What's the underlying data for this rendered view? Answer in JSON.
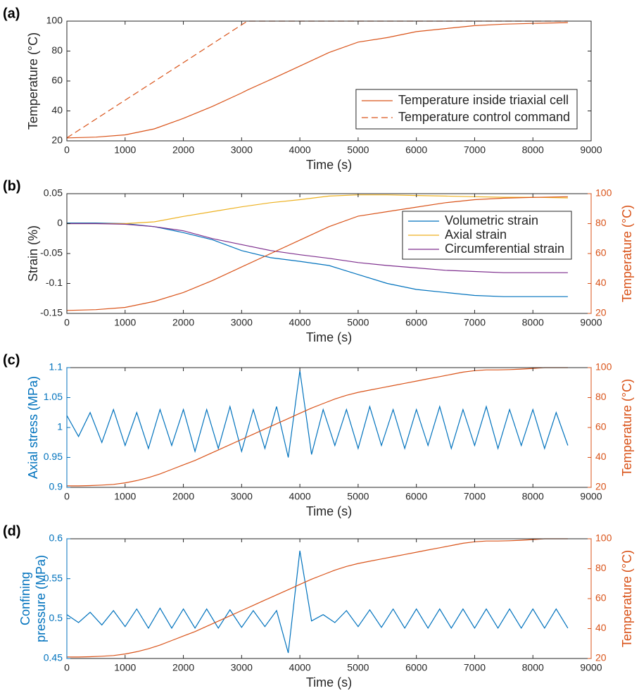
{
  "chart_data": [
    {
      "type": "line",
      "panel_label": "(a)",
      "xlabel": "Time (s)",
      "ylabel": [
        "Temperature (°C)"
      ],
      "x": [
        0,
        500,
        1000,
        1500,
        2000,
        2500,
        3000,
        3100,
        3500,
        4000,
        4500,
        5000,
        5500,
        6000,
        6500,
        7000,
        7500,
        8000,
        8600
      ],
      "xlim": [
        0,
        9000
      ],
      "xticks": [
        0,
        1000,
        2000,
        3000,
        4000,
        5000,
        6000,
        7000,
        8000,
        9000
      ],
      "ylim": [
        20,
        100
      ],
      "yticks": [
        20,
        40,
        60,
        80,
        100
      ],
      "ycolor": "#262626",
      "legend": "lower right",
      "series": [
        {
          "name": "Temperature inside triaxial cell",
          "color": "#d95319",
          "values": [
            22,
            22.5,
            24,
            28,
            35,
            43,
            52,
            54,
            61,
            70,
            79,
            86,
            89,
            93,
            95,
            97,
            98,
            98.5,
            99
          ]
        },
        {
          "name": "Temperature control command",
          "color": "#d95319",
          "dash": true,
          "values": [
            22,
            34.6,
            47.2,
            59.7,
            72.3,
            84.9,
            97.5,
            100,
            100,
            100,
            100,
            100,
            100,
            100,
            100,
            100,
            100,
            100,
            100
          ]
        }
      ]
    },
    {
      "type": "line",
      "panel_label": "(b)",
      "xlabel": "Time (s)",
      "ylabel": [
        "Strain (%)"
      ],
      "y2label": "Temperature (°C)",
      "x": [
        0,
        500,
        1000,
        1500,
        2000,
        2500,
        3000,
        3500,
        4000,
        4500,
        5000,
        5500,
        6000,
        6500,
        7000,
        7500,
        8000,
        8600
      ],
      "xlim": [
        0,
        9000
      ],
      "xticks": [
        0,
        1000,
        2000,
        3000,
        4000,
        5000,
        6000,
        7000,
        8000,
        9000
      ],
      "ylim": [
        -0.15,
        0.05
      ],
      "yticks": [
        -0.15,
        -0.1,
        -0.05,
        0,
        0.05
      ],
      "ycolor": "#262626",
      "y2lim": [
        20,
        100
      ],
      "y2ticks": [
        20,
        40,
        60,
        80,
        100
      ],
      "y2color": "#d95319",
      "legend": "upper right",
      "series": [
        {
          "name": "Volumetric strain",
          "color": "#0072bd",
          "values": [
            0.001,
            0.001,
            0,
            -0.005,
            -0.015,
            -0.027,
            -0.045,
            -0.057,
            -0.063,
            -0.07,
            -0.085,
            -0.1,
            -0.11,
            -0.115,
            -0.12,
            -0.122,
            -0.122,
            -0.122
          ]
        },
        {
          "name": "Axial strain",
          "color": "#edb120",
          "values": [
            0,
            0,
            0,
            0.003,
            0.012,
            0.02,
            0.028,
            0.035,
            0.04,
            0.046,
            0.048,
            0.048,
            0.047,
            0.046,
            0.045,
            0.044,
            0.044,
            0.043
          ]
        },
        {
          "name": "Circumferential strain",
          "color": "#7e2f8e",
          "values": [
            0,
            0,
            -0.001,
            -0.005,
            -0.012,
            -0.025,
            -0.035,
            -0.045,
            -0.052,
            -0.058,
            -0.065,
            -0.07,
            -0.074,
            -0.078,
            -0.08,
            -0.082,
            -0.082,
            -0.082
          ]
        },
        {
          "color": "#d95319",
          "axis": "y2",
          "values": [
            22,
            22.5,
            24,
            28,
            34,
            42,
            51,
            60,
            69,
            78,
            85,
            88,
            91,
            94,
            96,
            97,
            97.5,
            98
          ]
        }
      ]
    },
    {
      "type": "line",
      "panel_label": "(c)",
      "xlabel": "Time (s)",
      "ylabel": [
        "Axial stress (MPa)"
      ],
      "y2label": "Temperature (°C)",
      "x": [
        0,
        200,
        400,
        600,
        800,
        1000,
        1200,
        1400,
        1600,
        1800,
        2000,
        2200,
        2400,
        2600,
        2800,
        3000,
        3200,
        3400,
        3600,
        3800,
        4000,
        4200,
        4400,
        4600,
        4800,
        5000,
        5200,
        5400,
        5600,
        5800,
        6000,
        6200,
        6400,
        6600,
        6800,
        7000,
        7200,
        7400,
        7600,
        7800,
        8000,
        8200,
        8400,
        8600
      ],
      "xlim": [
        0,
        9000
      ],
      "xticks": [
        0,
        1000,
        2000,
        3000,
        4000,
        5000,
        6000,
        7000,
        8000,
        9000
      ],
      "ylim": [
        0.9,
        1.1
      ],
      "yticks": [
        0.9,
        0.95,
        1,
        1.05,
        1.1
      ],
      "ycolor": "#0072bd",
      "y2lim": [
        20,
        100
      ],
      "y2ticks": [
        20,
        40,
        60,
        80,
        100
      ],
      "y2color": "#d95319",
      "series": [
        {
          "color": "#0072bd",
          "values": [
            1.02,
            0.985,
            1.025,
            0.975,
            1.03,
            0.97,
            1.025,
            0.965,
            1.03,
            0.97,
            1.03,
            0.96,
            1.03,
            0.965,
            1.035,
            0.96,
            1.03,
            0.965,
            1.035,
            0.95,
            1.095,
            0.955,
            1.03,
            0.97,
            1.03,
            0.965,
            1.035,
            0.97,
            1.03,
            0.965,
            1.03,
            0.97,
            1.035,
            0.965,
            1.03,
            0.97,
            1.035,
            0.965,
            1.03,
            0.97,
            1.03,
            0.965,
            1.025,
            0.97
          ]
        },
        {
          "color": "#d95319",
          "axis": "y2",
          "values": [
            21,
            21,
            21.2,
            21.5,
            22,
            23,
            24.5,
            26.5,
            29,
            32,
            35,
            38,
            41.5,
            45,
            48.5,
            52,
            55.5,
            59,
            62.5,
            66,
            69.5,
            73,
            76,
            79,
            81.5,
            83.5,
            85,
            86.5,
            88,
            89.5,
            91,
            92.5,
            94,
            95.5,
            97,
            98,
            98.5,
            98.5,
            98.7,
            99,
            99.5,
            100,
            100,
            100
          ]
        }
      ]
    },
    {
      "type": "line",
      "panel_label": "(d)",
      "xlabel": "Time (s)",
      "ylabel": [
        "Confining",
        "pressure (MPa)"
      ],
      "y2label": "Temperature (°C)",
      "x": [
        0,
        200,
        400,
        600,
        800,
        1000,
        1200,
        1400,
        1600,
        1800,
        2000,
        2200,
        2400,
        2600,
        2800,
        3000,
        3200,
        3400,
        3600,
        3800,
        4000,
        4200,
        4400,
        4600,
        4800,
        5000,
        5200,
        5400,
        5600,
        5800,
        6000,
        6200,
        6400,
        6600,
        6800,
        7000,
        7200,
        7400,
        7600,
        7800,
        8000,
        8200,
        8400,
        8600
      ],
      "xlim": [
        0,
        9000
      ],
      "xticks": [
        0,
        1000,
        2000,
        3000,
        4000,
        5000,
        6000,
        7000,
        8000,
        9000
      ],
      "ylim": [
        0.45,
        0.6
      ],
      "yticks": [
        0.45,
        0.5,
        0.55,
        0.6
      ],
      "ycolor": "#0072bd",
      "y2lim": [
        20,
        100
      ],
      "y2ticks": [
        20,
        40,
        60,
        80,
        100
      ],
      "y2color": "#d95319",
      "series": [
        {
          "color": "#0072bd",
          "values": [
            0.505,
            0.495,
            0.508,
            0.492,
            0.51,
            0.49,
            0.512,
            0.488,
            0.513,
            0.488,
            0.512,
            0.488,
            0.512,
            0.488,
            0.511,
            0.489,
            0.51,
            0.49,
            0.51,
            0.457,
            0.585,
            0.497,
            0.505,
            0.495,
            0.51,
            0.49,
            0.511,
            0.489,
            0.512,
            0.488,
            0.512,
            0.488,
            0.512,
            0.488,
            0.512,
            0.488,
            0.512,
            0.488,
            0.512,
            0.488,
            0.512,
            0.488,
            0.512,
            0.488
          ]
        },
        {
          "color": "#d95319",
          "axis": "y2",
          "values": [
            21,
            21,
            21.2,
            21.5,
            22,
            23,
            24.5,
            26.5,
            29,
            32,
            35,
            38,
            41.5,
            45,
            48.5,
            52,
            55.5,
            59,
            62.5,
            66,
            69.5,
            73,
            76,
            79,
            81.5,
            83.5,
            85,
            86.5,
            88,
            89.5,
            91,
            92.5,
            94,
            95.5,
            97,
            98,
            98.5,
            98.5,
            98.7,
            99,
            99.5,
            100,
            100,
            100
          ]
        }
      ]
    }
  ]
}
